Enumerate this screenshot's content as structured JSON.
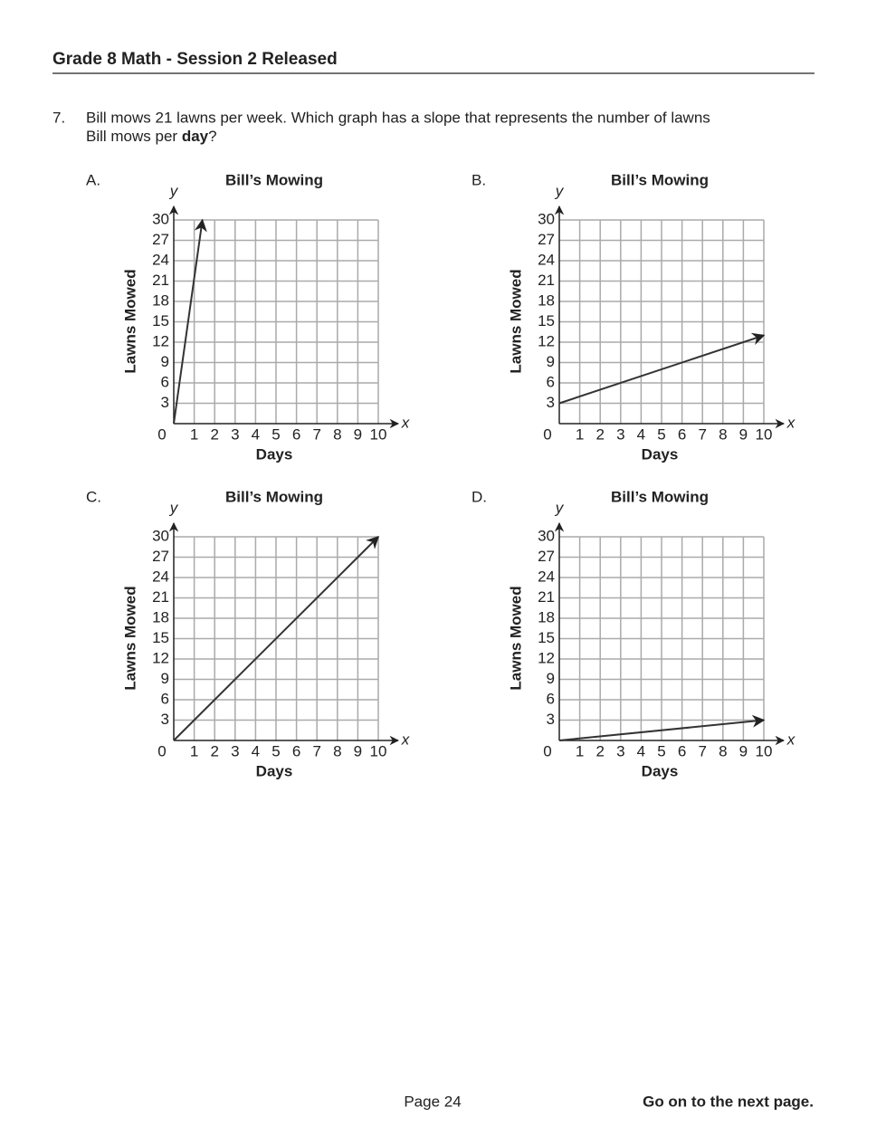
{
  "header": {
    "title": "Grade 8 Math - Session 2 Released"
  },
  "question": {
    "number": "7.",
    "line1": "Bill mows 21 lawns per week. Which graph has a slope that represents the number of lawns",
    "line2_start": "Bill mows per ",
    "line2_bold": "day",
    "line2_end": "?"
  },
  "chart_data": [
    {
      "type": "line",
      "label": "A.",
      "title": "Bill’s Mowing",
      "x_label": "Days",
      "y_label": "Lawns Mowed",
      "x_axis_name": "x",
      "y_axis_name": "y",
      "xlim": [
        0,
        10
      ],
      "ylim": [
        0,
        30
      ],
      "xticks": [
        0,
        1,
        2,
        3,
        4,
        5,
        6,
        7,
        8,
        9,
        10
      ],
      "yticks": [
        3,
        6,
        9,
        12,
        15,
        18,
        21,
        24,
        27,
        30
      ],
      "grid": true,
      "series": [
        {
          "color": "#333333",
          "x": [
            0,
            1.4
          ],
          "values": [
            0,
            30
          ]
        }
      ]
    },
    {
      "type": "line",
      "label": "B.",
      "title": "Bill’s Mowing",
      "x_label": "Days",
      "y_label": "Lawns Mowed",
      "x_axis_name": "x",
      "y_axis_name": "y",
      "xlim": [
        0,
        10
      ],
      "ylim": [
        0,
        30
      ],
      "xticks": [
        0,
        1,
        2,
        3,
        4,
        5,
        6,
        7,
        8,
        9,
        10
      ],
      "yticks": [
        3,
        6,
        9,
        12,
        15,
        18,
        21,
        24,
        27,
        30
      ],
      "grid": true,
      "series": [
        {
          "color": "#333333",
          "x": [
            0,
            10
          ],
          "values": [
            3,
            13
          ]
        }
      ]
    },
    {
      "type": "line",
      "label": "C.",
      "title": "Bill’s Mowing",
      "x_label": "Days",
      "y_label": "Lawns Mowed",
      "x_axis_name": "x",
      "y_axis_name": "y",
      "xlim": [
        0,
        10
      ],
      "ylim": [
        0,
        30
      ],
      "xticks": [
        0,
        1,
        2,
        3,
        4,
        5,
        6,
        7,
        8,
        9,
        10
      ],
      "yticks": [
        3,
        6,
        9,
        12,
        15,
        18,
        21,
        24,
        27,
        30
      ],
      "grid": true,
      "series": [
        {
          "color": "#333333",
          "x": [
            0,
            10
          ],
          "values": [
            0,
            30
          ]
        }
      ]
    },
    {
      "type": "line",
      "label": "D.",
      "title": "Bill’s Mowing",
      "x_label": "Days",
      "y_label": "Lawns Mowed",
      "x_axis_name": "x",
      "y_axis_name": "y",
      "xlim": [
        0,
        10
      ],
      "ylim": [
        0,
        30
      ],
      "xticks": [
        0,
        1,
        2,
        3,
        4,
        5,
        6,
        7,
        8,
        9,
        10
      ],
      "yticks": [
        3,
        6,
        9,
        12,
        15,
        18,
        21,
        24,
        27,
        30
      ],
      "grid": true,
      "series": [
        {
          "color": "#333333",
          "x": [
            0,
            10
          ],
          "values": [
            0,
            3
          ]
        }
      ]
    }
  ],
  "footer": {
    "page": "Page 24",
    "next": "Go on to the next page."
  }
}
